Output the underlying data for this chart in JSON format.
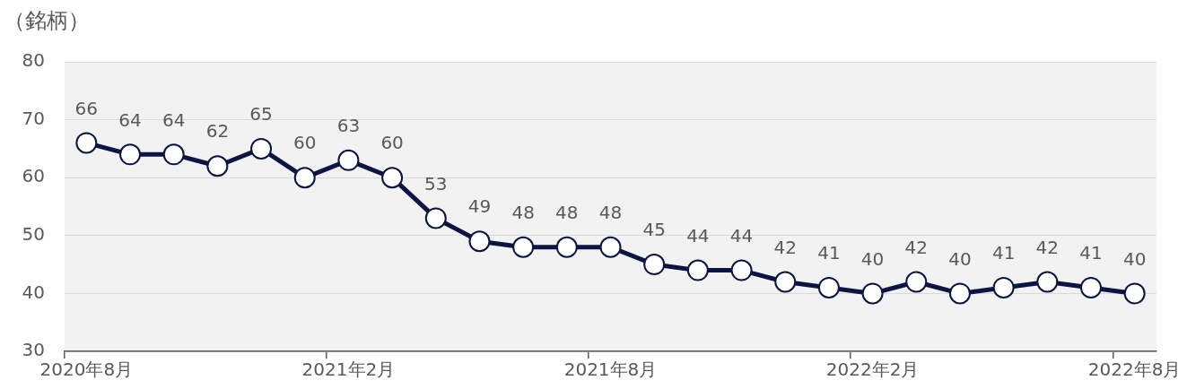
{
  "chart_data": {
    "type": "line",
    "ylabel": "（銘柄）",
    "categories": [
      "2020年8月",
      null,
      null,
      null,
      null,
      null,
      "2021年2月",
      null,
      null,
      null,
      null,
      null,
      "2021年8月",
      null,
      null,
      null,
      null,
      null,
      "2022年2月",
      null,
      null,
      null,
      null,
      null,
      "2022年8月"
    ],
    "series": [
      {
        "color": "#0c1541",
        "values": [
          66,
          64,
          64,
          62,
          65,
          60,
          63,
          60,
          53,
          49,
          48,
          48,
          48,
          45,
          44,
          44,
          42,
          41,
          40,
          42,
          40,
          41,
          42,
          41,
          40
        ]
      }
    ],
    "ylim": [
      30,
      80
    ],
    "yticks": [
      30,
      40,
      50,
      60,
      70,
      80
    ],
    "grid": "y",
    "marker": "circle",
    "line_style": "solid",
    "data_labels": true
  }
}
